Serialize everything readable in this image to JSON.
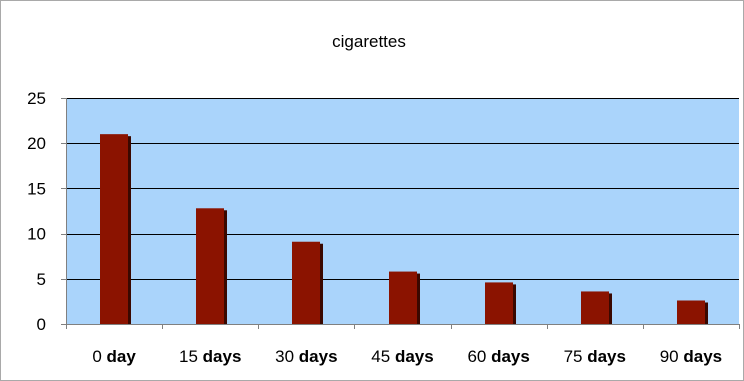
{
  "chart_data": {
    "type": "bar",
    "title": "cigarettes",
    "categories": [
      "0 day",
      "15 days",
      "30 days",
      "45 days",
      "60 days",
      "75 days",
      "90 days"
    ],
    "category_parts": [
      {
        "num": "0",
        "unit": "day"
      },
      {
        "num": "15",
        "unit": "days"
      },
      {
        "num": "30",
        "unit": "days"
      },
      {
        "num": "45",
        "unit": "days"
      },
      {
        "num": "60",
        "unit": "days"
      },
      {
        "num": "75",
        "unit": "days"
      },
      {
        "num": "90",
        "unit": "days"
      }
    ],
    "values": [
      21,
      12.8,
      9.1,
      5.8,
      4.6,
      3.6,
      2.6
    ],
    "ylim": [
      0,
      25
    ],
    "yticks": [
      "0",
      "5",
      "10",
      "15",
      "20",
      "25"
    ],
    "xlabel": "",
    "ylabel": "",
    "grid": true,
    "legend": "none",
    "colors": {
      "bar": "#8b1300",
      "bar_shadow": "#3a0800",
      "plot_bg": "#aad4fb",
      "gridline": "#000000",
      "axis": "#808080"
    }
  }
}
